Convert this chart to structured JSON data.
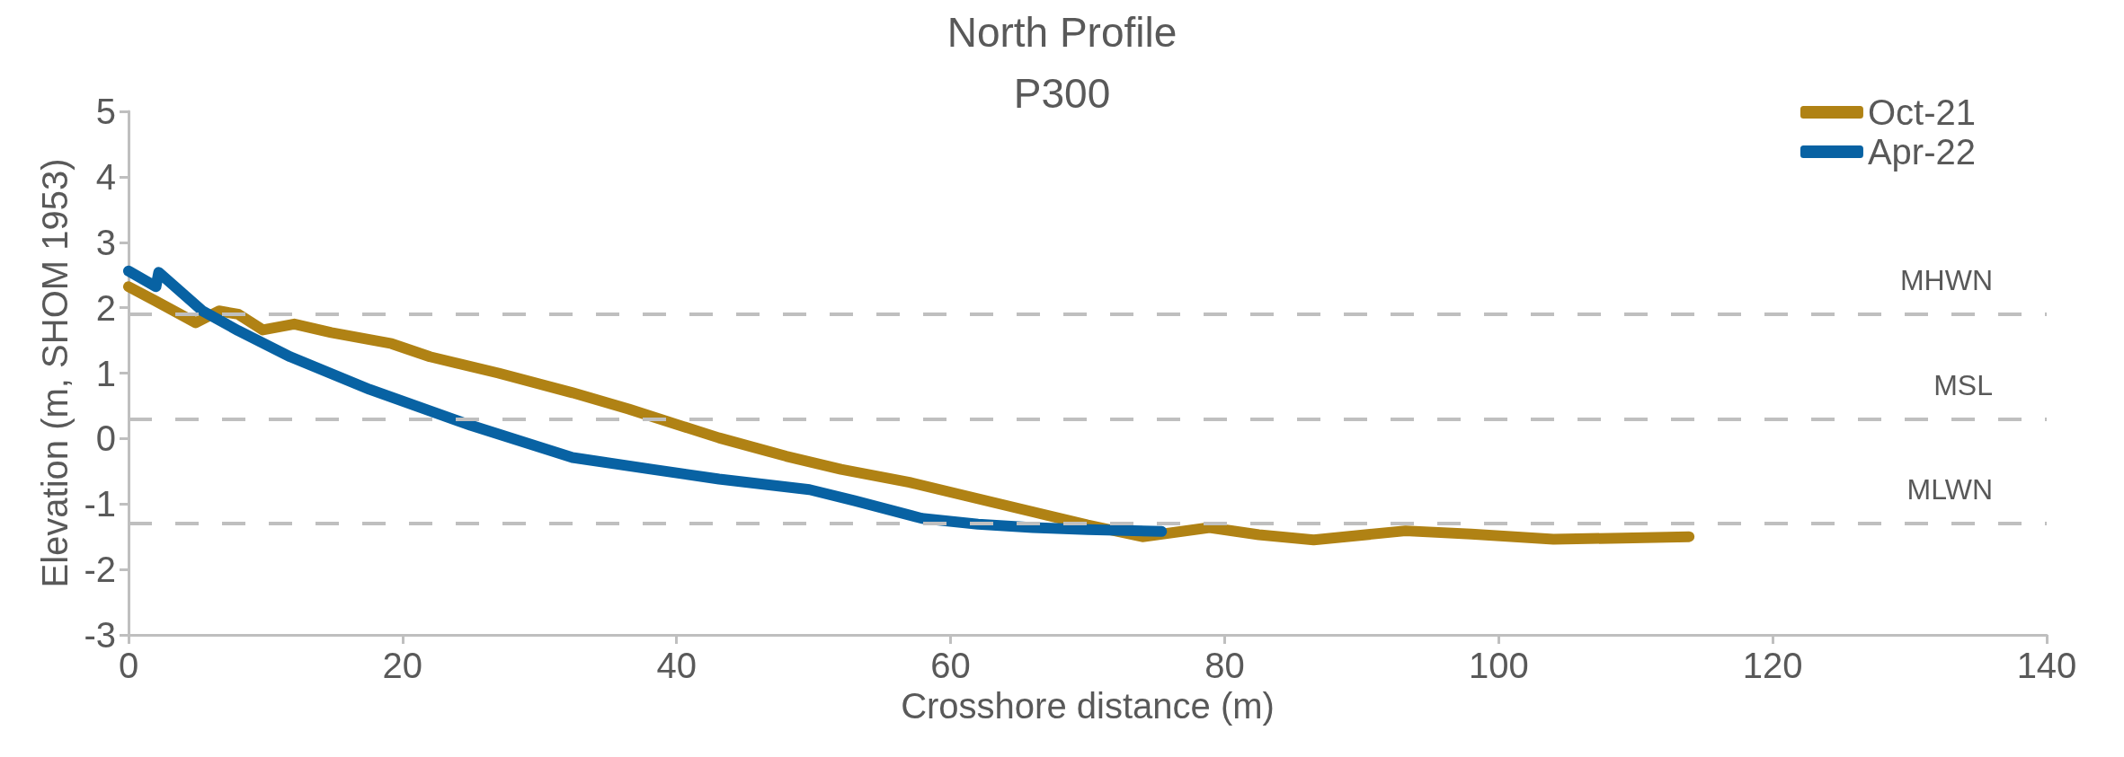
{
  "chart_data": {
    "type": "line",
    "title": "North Profile",
    "subtitle": "P300",
    "xlabel": "Crosshore distance (m)",
    "ylabel": "Elevation (m, SHOM 1953)",
    "series": [
      {
        "name": "Oct-21",
        "color": "#b08214",
        "x": [
          0,
          2,
          4.9,
          6.6,
          8,
          9.8,
          12.1,
          14.8,
          19.2,
          22,
          27,
          32.4,
          36.5,
          43.1,
          48,
          52,
          57,
          61,
          66,
          70,
          74,
          78.9,
          82.5,
          86.5,
          93.2,
          98,
          104,
          109,
          113.9
        ],
        "values": [
          2.32,
          2.1,
          1.77,
          1.95,
          1.9,
          1.66,
          1.75,
          1.62,
          1.45,
          1.25,
          1.0,
          0.7,
          0.45,
          0.01,
          -0.27,
          -0.47,
          -0.67,
          -0.87,
          -1.12,
          -1.32,
          -1.5,
          -1.36,
          -1.47,
          -1.55,
          -1.41,
          -1.46,
          -1.54,
          -1.52,
          -1.5
        ]
      },
      {
        "name": "Apr-22",
        "color": "#0862a3",
        "x": [
          0,
          2,
          2.2,
          5.4,
          8,
          11.8,
          17.6,
          25,
          32.4,
          38.2,
          43.1,
          49.7,
          53,
          57.9,
          62,
          66,
          70,
          75.4
        ],
        "values": [
          2.56,
          2.32,
          2.54,
          1.95,
          1.65,
          1.25,
          0.75,
          0.2,
          -0.29,
          -0.47,
          -0.62,
          -0.78,
          -0.95,
          -1.22,
          -1.31,
          -1.36,
          -1.39,
          -1.42
        ]
      }
    ],
    "xlim": [
      0,
      140
    ],
    "xticks": [
      0,
      20,
      40,
      60,
      80,
      100,
      120,
      140
    ],
    "ylim": [
      -3,
      5
    ],
    "yticks": [
      -3,
      -2,
      -1,
      0,
      1,
      2,
      3,
      4,
      5
    ],
    "ref_lines": [
      {
        "axis": "y",
        "value": 1.9,
        "label": "MHWN",
        "color": "#bfbfbf",
        "line_style": "dashed"
      },
      {
        "axis": "y",
        "value": 0.3,
        "label": "MSL",
        "color": "#bfbfbf",
        "line_style": "dashed"
      },
      {
        "axis": "y",
        "value": -1.3,
        "label": "MLWN",
        "color": "#bfbfbf",
        "line_style": "dashed"
      }
    ],
    "grid": false,
    "legend": "top right",
    "marker": "none",
    "line_style": "solid"
  }
}
